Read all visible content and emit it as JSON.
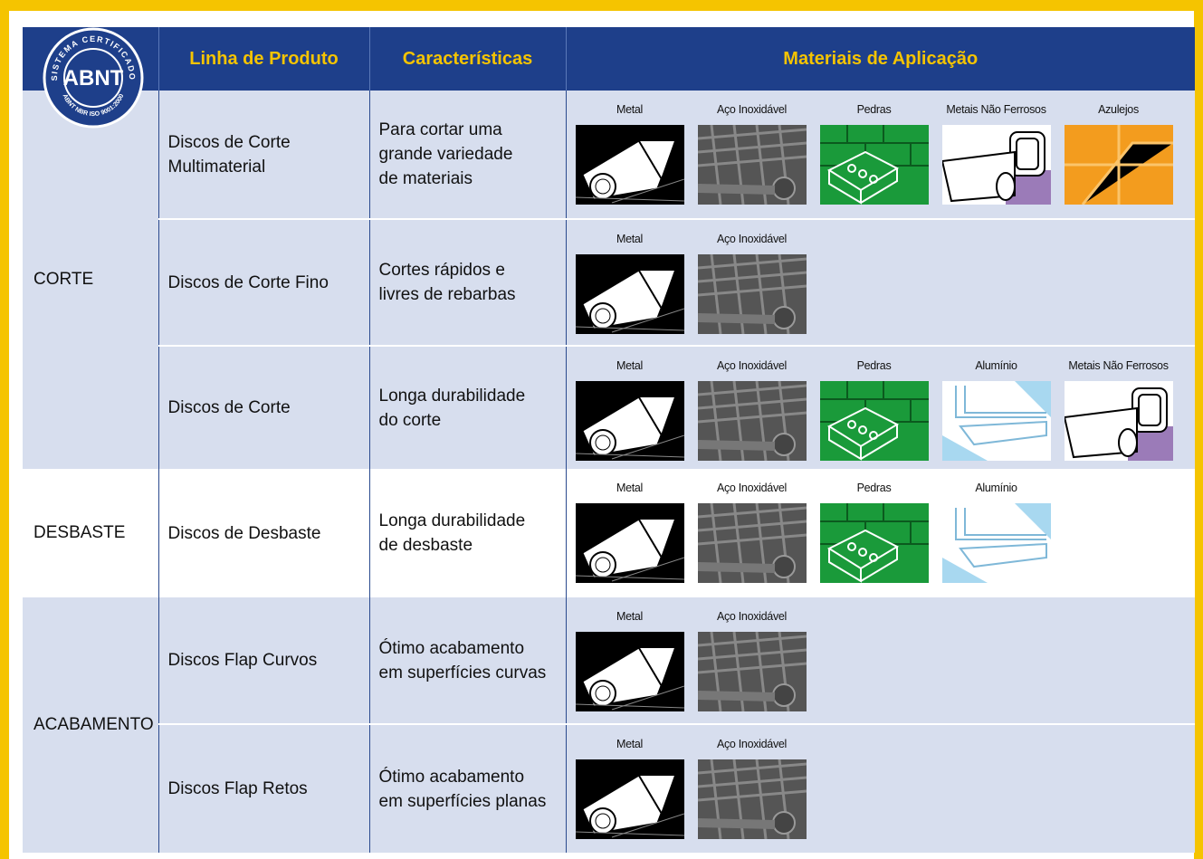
{
  "logo": {
    "ring_top": "SISTEMA CERTIFICADO",
    "mark": "ABNT",
    "ring_bottom": "ABNT NBR ISO 9001:2000"
  },
  "table": {
    "headers": [
      "Linha de Produto",
      "Características",
      "Materiais de Aplicação"
    ],
    "groups": [
      {
        "category": "CORTE",
        "rows": [
          {
            "product": [
              "Discos de Corte",
              "Multimaterial"
            ],
            "characteristics": [
              "Para cortar uma",
              "grande variedade",
              "de materiais"
            ],
            "materials": [
              "Metal",
              "Aço Inoxidável",
              "Pedras",
              "Metais Não Ferrosos",
              "Azulejos"
            ]
          },
          {
            "product": [
              "Discos de Corte Fino"
            ],
            "characteristics": [
              "Cortes rápidos e",
              "livres de rebarbas"
            ],
            "materials": [
              "Metal",
              "Aço Inoxidável"
            ]
          },
          {
            "product": [
              "Discos de Corte"
            ],
            "characteristics": [
              "Longa durabilidade",
              "do corte"
            ],
            "materials": [
              "Metal",
              "Aço Inoxidável",
              "Pedras",
              "Alumínio",
              "Metais Não Ferrosos"
            ]
          }
        ]
      },
      {
        "category": "DESBASTE",
        "rows": [
          {
            "product": [
              "Discos de Desbaste"
            ],
            "characteristics": [
              "Longa durabilidade",
              "de desbaste"
            ],
            "materials": [
              "Metal",
              "Aço Inoxidável",
              "Pedras",
              "Alumínio"
            ]
          }
        ]
      },
      {
        "category": "ACABAMENTO",
        "rows": [
          {
            "product": [
              "Discos Flap Curvos"
            ],
            "characteristics": [
              "Ótimo acabamento",
              "em superfícies curvas"
            ],
            "materials": [
              "Metal",
              "Aço Inoxidável"
            ]
          },
          {
            "product": [
              "Discos Flap Retos"
            ],
            "characteristics": [
              "Ótimo acabamento",
              "em superfícies planas"
            ],
            "materials": [
              "Metal",
              "Aço Inoxidável"
            ]
          }
        ]
      }
    ]
  }
}
